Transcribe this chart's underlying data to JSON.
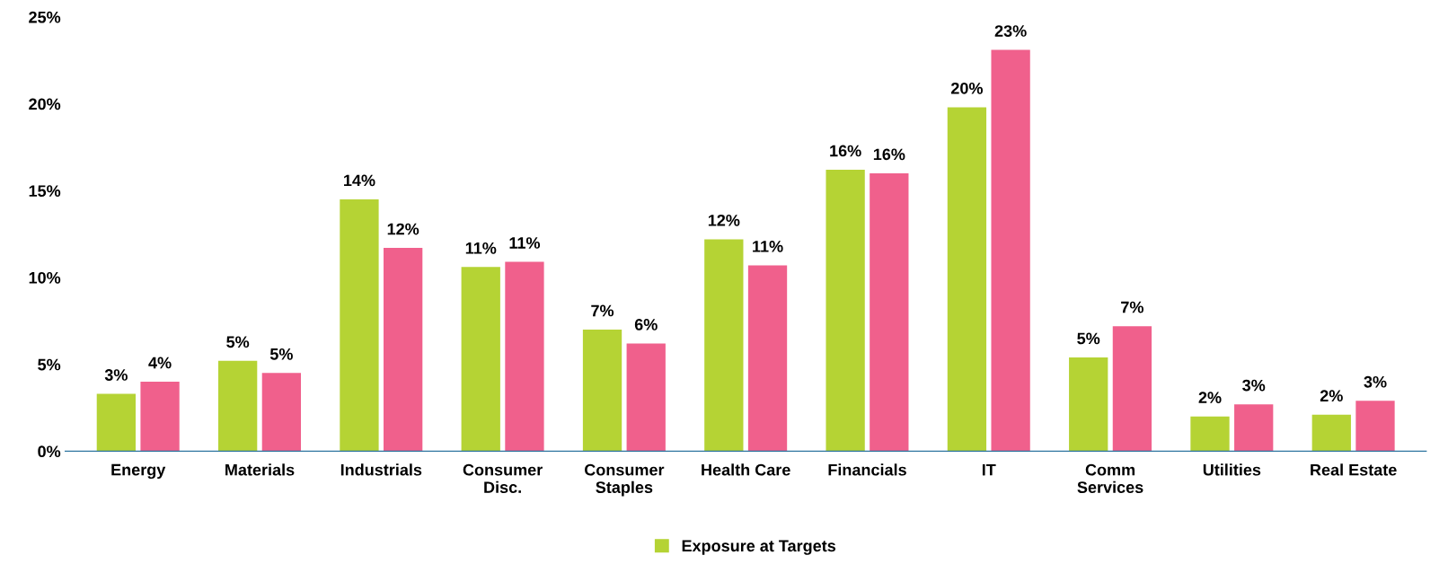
{
  "chart_data": {
    "type": "bar",
    "categories": [
      "Energy",
      "Materials",
      "Industrials",
      "Consumer\nDisc.",
      "Consumer\nStaples",
      "Health Care",
      "Financials",
      "IT",
      "Comm\nServices",
      "Utilities",
      "Real Estate"
    ],
    "series": [
      {
        "name": "Exposure at Targets",
        "color": "#b5d334",
        "values": [
          3.3,
          5.2,
          14.5,
          10.6,
          7.0,
          12.2,
          16.2,
          19.8,
          5.4,
          2.0,
          2.1
        ],
        "value_labels": [
          "3%",
          "5%",
          "14%",
          "11%",
          "7%",
          "12%",
          "16%",
          "20%",
          "5%",
          "2%",
          "2%"
        ]
      },
      {
        "color": "#f0608c",
        "values": [
          4.0,
          4.5,
          11.7,
          10.9,
          6.2,
          10.7,
          16.0,
          23.1,
          7.2,
          2.7,
          2.9
        ],
        "value_labels": [
          "4%",
          "5%",
          "12%",
          "11%",
          "6%",
          "11%",
          "16%",
          "23%",
          "7%",
          "3%",
          "3%"
        ]
      }
    ],
    "ylim": [
      0,
      25
    ],
    "yticks": [
      {
        "value": 0,
        "label": "0%"
      },
      {
        "value": 5,
        "label": "5%"
      },
      {
        "value": 10,
        "label": "10%"
      },
      {
        "value": 15,
        "label": "15%"
      },
      {
        "value": 20,
        "label": "20%"
      },
      {
        "value": 25,
        "label": "25%"
      }
    ],
    "grid": false,
    "legend": "bottom"
  }
}
